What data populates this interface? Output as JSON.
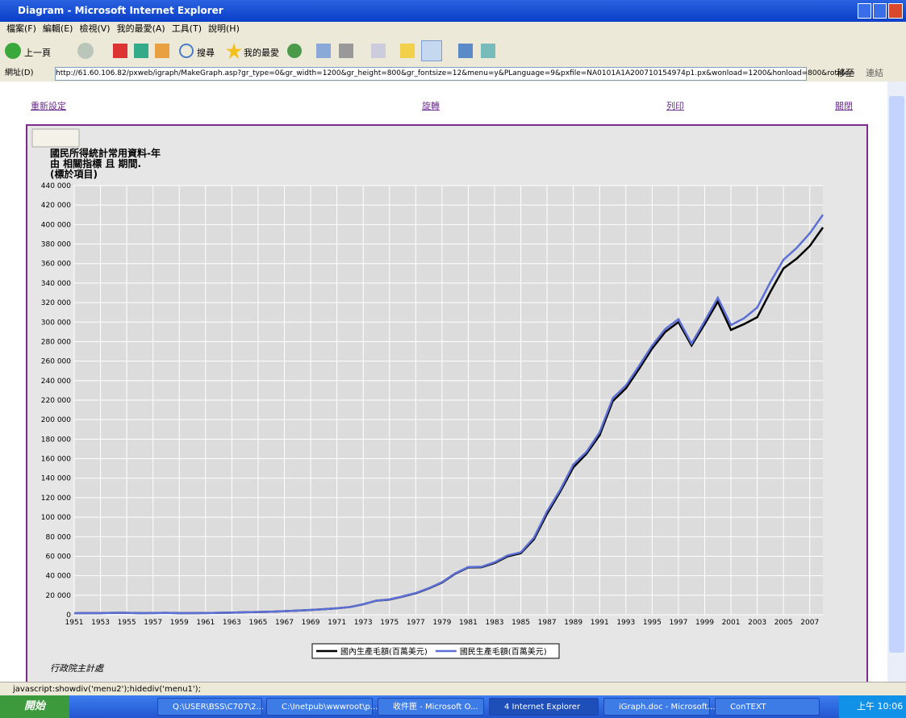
{
  "window": {
    "title": "Diagram - Microsoft Internet Explorer",
    "menu": [
      "檔案(F)",
      "編輯(E)",
      "檢視(V)",
      "我的最愛(A)",
      "工具(T)",
      "說明(H)"
    ],
    "toolbar": {
      "back": "上一頁",
      "search": "搜尋",
      "favorites": "我的最愛"
    },
    "address": {
      "label": "網址(D)",
      "url": "http://61.60.106.82/pxweb/igraph/MakeGraph.asp?gr_type=0&gr_width=1200&gr_height=800&gr_fontsize=12&menu=y&PLanguage=9&pxfile=NA0101A1A200710154974p1.px&wonload=1200&honload=800&rotate=",
      "go": "移至",
      "links": "連結"
    }
  },
  "page": {
    "links": [
      "重新設定",
      "旋轉",
      "列印",
      "關閉"
    ],
    "source": "行政院主計處"
  },
  "chart_data": {
    "type": "line",
    "title": "國民所得統計常用資料-年",
    "subtitle": "由 相關指標 且 期間.",
    "note": "(標於項目)",
    "x": [
      1951,
      1952,
      1953,
      1954,
      1955,
      1956,
      1957,
      1958,
      1959,
      1960,
      1961,
      1962,
      1963,
      1964,
      1965,
      1966,
      1967,
      1968,
      1969,
      1970,
      1971,
      1972,
      1973,
      1974,
      1975,
      1976,
      1977,
      1978,
      1979,
      1980,
      1981,
      1982,
      1983,
      1984,
      1985,
      1986,
      1987,
      1988,
      1989,
      1990,
      1991,
      1992,
      1993,
      1994,
      1995,
      1996,
      1997,
      1998,
      1999,
      2000,
      2001,
      2002,
      2003,
      2004,
      2005,
      2006,
      2007,
      2008
    ],
    "series": [
      {
        "name": "國內生產毛額(百萬美元)",
        "color": "#000000",
        "values": [
          1600,
          1700,
          1700,
          2000,
          2000,
          1700,
          1800,
          2000,
          1700,
          1700,
          1800,
          2000,
          2200,
          2600,
          2800,
          3100,
          3600,
          4200,
          4900,
          5700,
          6600,
          7900,
          10700,
          14400,
          15500,
          18600,
          22000,
          27000,
          33000,
          42000,
          48500,
          48700,
          53000,
          59800,
          63100,
          77300,
          103500,
          126200,
          151000,
          165000,
          184000,
          219000,
          232000,
          252000,
          273000,
          290000,
          300000,
          276000,
          298000,
          321000,
          292000,
          298000,
          305000,
          331000,
          355000,
          365000,
          378000,
          397000
        ]
      },
      {
        "name": "國民生產毛額(百萬美元)",
        "color": "#5b6fd6",
        "values": [
          1600,
          1700,
          1700,
          2000,
          2000,
          1700,
          1800,
          2000,
          1700,
          1700,
          1800,
          2000,
          2200,
          2600,
          2800,
          3100,
          3600,
          4200,
          4900,
          5700,
          6600,
          7900,
          10800,
          14500,
          15700,
          18800,
          22300,
          27300,
          33400,
          42400,
          48900,
          49200,
          53800,
          60800,
          64000,
          79000,
          106000,
          128000,
          154000,
          167000,
          187000,
          222000,
          235000,
          255000,
          276000,
          293000,
          303000,
          278000,
          301000,
          325000,
          297000,
          304000,
          315000,
          341000,
          364000,
          376000,
          391000,
          410000
        ]
      }
    ],
    "xlim": [
      1951,
      2008
    ],
    "xticks": [
      1951,
      1953,
      1955,
      1957,
      1959,
      1961,
      1963,
      1965,
      1967,
      1969,
      1971,
      1973,
      1975,
      1977,
      1979,
      1981,
      1983,
      1985,
      1987,
      1989,
      1991,
      1993,
      1995,
      1997,
      1999,
      2001,
      2003,
      2005,
      2007
    ],
    "ylim": [
      0,
      440000
    ],
    "yticks": [
      0,
      {
        "value": 20000,
        "label": "20 000"
      },
      {
        "value": 40000,
        "label": "40 000"
      },
      {
        "value": 60000,
        "label": "60 000"
      },
      {
        "value": 80000,
        "label": "80 000"
      },
      {
        "value": 100000,
        "label": "100 000"
      },
      {
        "value": 120000,
        "label": "120 000"
      },
      {
        "value": 140000,
        "label": "140 000"
      },
      {
        "value": 160000,
        "label": "160 000"
      },
      {
        "value": 180000,
        "label": "180 000"
      },
      {
        "value": 200000,
        "label": "200 000"
      },
      {
        "value": 220000,
        "label": "220 000"
      },
      {
        "value": 240000,
        "label": "240 000"
      },
      {
        "value": 260000,
        "label": "260 000"
      },
      {
        "value": 280000,
        "label": "280 000"
      },
      {
        "value": 300000,
        "label": "300 000"
      },
      {
        "value": 320000,
        "label": "320 000"
      },
      {
        "value": 340000,
        "label": "340 000"
      },
      {
        "value": 360000,
        "label": "360 000"
      },
      {
        "value": 380000,
        "label": "380 000"
      },
      {
        "value": 400000,
        "label": "400 000"
      },
      {
        "value": 420000,
        "label": "420 000"
      },
      {
        "value": 440000,
        "label": "440 000"
      }
    ],
    "grid": true,
    "legend": "bottom"
  },
  "status": "javascript:showdiv('menu2');hidediv('menu1');",
  "taskbar": {
    "start": "開始",
    "items": [
      "Q:\\USER\\BSS\\C707\\2...",
      "C:\\Inetpub\\wwwroot\\p...",
      "收件匣 - Microsoft O...",
      "4 Internet Explorer",
      "iGraph.doc - Microsoft...",
      "ConTEXT"
    ],
    "clock": "上午 10:06"
  }
}
